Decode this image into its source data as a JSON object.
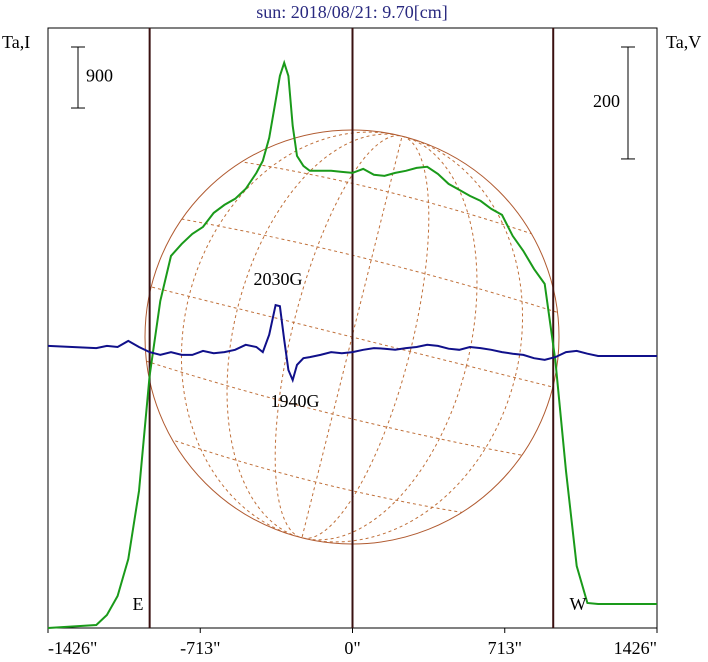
{
  "chart_data": {
    "type": "line",
    "title": "sun: 2018/08/21: 9.70[cm]",
    "y_label": "Ta,I",
    "y2_label": "Ta,V",
    "x": [
      -1426,
      -1200,
      -1150,
      -1100,
      -1050,
      -1000,
      -950,
      -900,
      -850,
      -800,
      -750,
      -700,
      -650,
      -600,
      -550,
      -500,
      -450,
      -420,
      -390,
      -360,
      -340,
      -320,
      -300,
      -280,
      -260,
      -230,
      -200,
      -150,
      -100,
      -50,
      0,
      50,
      100,
      150,
      200,
      250,
      300,
      350,
      400,
      450,
      500,
      550,
      600,
      650,
      700,
      750,
      800,
      850,
      900,
      950,
      1000,
      1050,
      1100,
      1150,
      1200,
      1426
    ],
    "series": [
      {
        "color": "#1a9a1a",
        "axis": "y",
        "values": [
          0,
          44,
          192,
          472,
          1018,
          2021,
          3718,
          4825,
          5489,
          5666,
          5813,
          5916,
          6123,
          6241,
          6331,
          6477,
          6713,
          6890,
          7229,
          7775,
          8144,
          8336,
          8144,
          7406,
          6964,
          6816,
          6743,
          6743,
          6743,
          6728,
          6713,
          6772,
          6684,
          6669,
          6713,
          6743,
          6787,
          6802,
          6698,
          6551,
          6462,
          6374,
          6300,
          6182,
          6093,
          5784,
          5562,
          5297,
          5075,
          3939,
          2316,
          915,
          369,
          354,
          354,
          354
        ]
      },
      {
        "color": "#10108a",
        "axis": "y2",
        "values": [
          9,
          5,
          9,
          7,
          18,
          7,
          -2,
          -7,
          -2,
          -7,
          -7,
          0,
          -4,
          -2,
          2,
          11,
          7,
          -2,
          29,
          82,
          80,
          20,
          -34,
          -52,
          -25,
          -13,
          -11,
          -7,
          -2,
          -4,
          -2,
          2,
          5,
          4,
          2,
          5,
          7,
          11,
          9,
          4,
          2,
          7,
          5,
          2,
          -2,
          -5,
          -7,
          -13,
          -16,
          -11,
          -2,
          0,
          -5,
          -9,
          -9,
          -9
        ]
      }
    ],
    "xlim": [
      -1426,
      1426
    ],
    "xticks": [
      {
        "value": -1426,
        "label": "-1426\""
      },
      {
        "value": -713,
        "label": "-713\""
      },
      {
        "value": 0,
        "label": "0\""
      },
      {
        "value": 713,
        "label": "713\""
      },
      {
        "value": 1426,
        "label": "1426\""
      }
    ],
    "ylim": [
      0,
      8850
    ],
    "y2lim": [
      -495,
      577
    ],
    "scale_bars": [
      {
        "axis": "y",
        "value": 900
      },
      {
        "axis": "y2",
        "value": 200
      }
    ],
    "vlines": [
      -950,
      0,
      940
    ],
    "annotations": [
      "2030G",
      "1940G",
      "E",
      "W"
    ]
  }
}
